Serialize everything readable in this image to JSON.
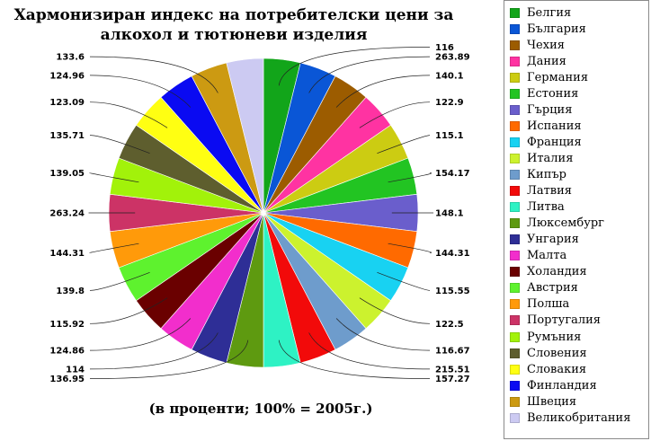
{
  "chart_data": {
    "type": "pie",
    "title_lines": [
      "Хармонизиран индекс на потребителски цени за",
      "алкохол и тютюневи изделия"
    ],
    "subtitle": "(в проценти; 100% = 2005г.)",
    "legend_position": "right",
    "slices": [
      {
        "name": "Белгия",
        "value": 116,
        "color": "#12a51a"
      },
      {
        "name": "България",
        "value": 263.89,
        "color": "#0a56d6"
      },
      {
        "name": "Чехия",
        "value": 140.1,
        "color": "#9c5c00"
      },
      {
        "name": "Дания",
        "value": 122.9,
        "color": "#ff33a2"
      },
      {
        "name": "Германия",
        "value": 115.1,
        "color": "#cccc12"
      },
      {
        "name": "Естония",
        "value": 154.17,
        "color": "#22c422"
      },
      {
        "name": "Гърция",
        "value": 148.1,
        "color": "#6a5ecc"
      },
      {
        "name": "Испания",
        "value": 144.31,
        "color": "#ff6a00"
      },
      {
        "name": "Франция",
        "value": 115.55,
        "color": "#18d2f2"
      },
      {
        "name": "Италия",
        "value": 122.5,
        "color": "#ccf22e"
      },
      {
        "name": "Кипър",
        "value": 116.67,
        "color": "#6e9ccc"
      },
      {
        "name": "Латвия",
        "value": 215.51,
        "color": "#f20a0a"
      },
      {
        "name": "Литва",
        "value": 157.27,
        "color": "#2ef2c4"
      },
      {
        "name": "Люксембург",
        "value": 136.95,
        "color": "#5e9a10"
      },
      {
        "name": "Унгария",
        "value": 114,
        "color": "#2e2e96"
      },
      {
        "name": "Малта",
        "value": 124.86,
        "color": "#f22ecc"
      },
      {
        "name": "Холандия",
        "value": 115.92,
        "color": "#6a0000"
      },
      {
        "name": "Австрия",
        "value": 139.8,
        "color": "#5ef22e"
      },
      {
        "name": "Полша",
        "value": 144.31,
        "color": "#ff9a0a"
      },
      {
        "name": "Португалия",
        "value": 263.24,
        "color": "#cc3366"
      },
      {
        "name": "Румъния",
        "value": 139.05,
        "color": "#a2f20a"
      },
      {
        "name": "Словения",
        "value": 135.71,
        "color": "#5e5e2e"
      },
      {
        "name": "Словакия",
        "value": 123.09,
        "color": "#ffff12"
      },
      {
        "name": "Финландия",
        "value": 124.96,
        "color": "#0a0af2"
      },
      {
        "name": "Швеция",
        "value": 133.6,
        "color": "#cc9a12"
      },
      {
        "name": "Великобритания",
        "value": 0,
        "color": "#cccaf2"
      }
    ]
  }
}
